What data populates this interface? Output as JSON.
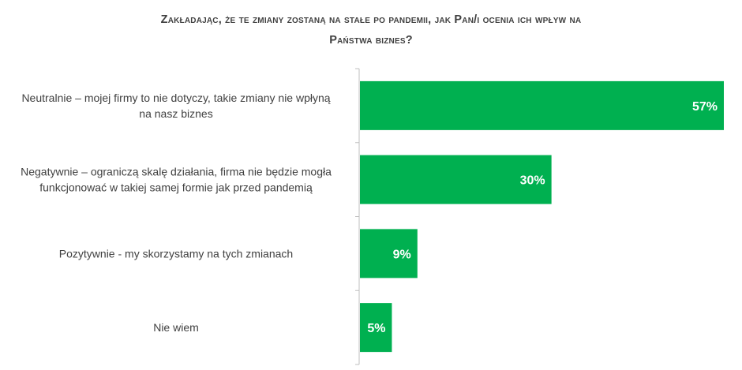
{
  "chart_data": {
    "type": "bar",
    "orientation": "horizontal",
    "title_lines": [
      "Zakładając, że te zmiany zostaną na stałe po pandemii, jak Pan/i ocenia ich wpływ na",
      "Państwa biznes?"
    ],
    "categories": [
      [
        "Neutralnie – mojej firmy to nie dotyczy, takie zmiany nie wpłyną",
        "na nasz biznes"
      ],
      [
        "Negatywnie – ograniczą skalę działania, firma nie będzie mogła",
        "funkcjonować w takiej samej formie jak przed pandemią"
      ],
      [
        "Pozytywnie - my skorzystamy na tych zmianach"
      ],
      [
        "Nie wiem"
      ]
    ],
    "values": [
      57,
      30,
      9,
      5
    ],
    "value_labels": [
      "57%",
      "30%",
      "9%",
      "5%"
    ],
    "xlim": [
      0,
      57
    ],
    "grid": false,
    "legend": "none",
    "bar_color": "#00B050",
    "axis_color": "#BFBFBF"
  }
}
